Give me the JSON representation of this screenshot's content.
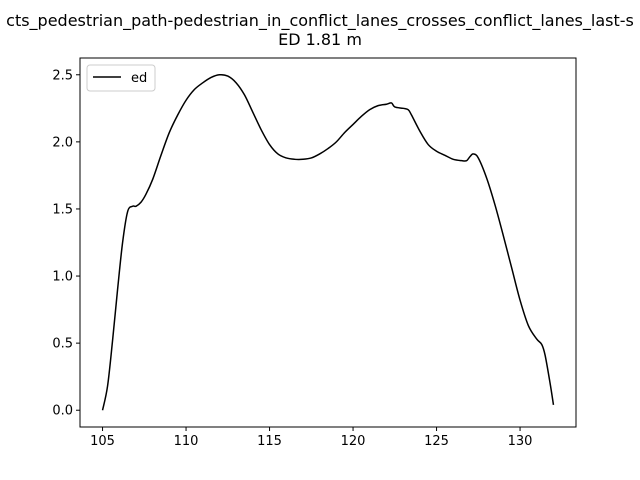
{
  "chart_data": {
    "type": "line",
    "title_line1": "cts_pedestrian_path-pedestrian_in_conflict_lanes_crosses_conflict_lanes_last-s",
    "title_line2": "ED 1.81 m",
    "xlabel": "",
    "ylabel": "",
    "xlim": [
      103.65,
      133.35
    ],
    "ylim": [
      -0.125,
      2.625
    ],
    "x_ticks": [
      105,
      110,
      115,
      120,
      125,
      130
    ],
    "x_tick_labels": [
      "105",
      "110",
      "115",
      "120",
      "125",
      "130"
    ],
    "y_ticks": [
      0.0,
      0.5,
      1.0,
      1.5,
      2.0,
      2.5
    ],
    "y_tick_labels": [
      "0.0",
      "0.5",
      "1.0",
      "1.5",
      "2.0",
      "2.5"
    ],
    "grid": false,
    "legend_position": "upper-left",
    "series": [
      {
        "name": "ed",
        "color": "#000000",
        "x": [
          105.0,
          105.3,
          105.6,
          105.9,
          106.2,
          106.5,
          106.8,
          107.0,
          107.3,
          107.6,
          108.0,
          108.5,
          109.0,
          109.5,
          110.0,
          110.5,
          111.0,
          111.5,
          112.0,
          112.5,
          113.0,
          113.5,
          114.0,
          114.5,
          115.0,
          115.5,
          116.0,
          116.5,
          117.0,
          117.5,
          118.0,
          118.5,
          119.0,
          119.5,
          120.0,
          120.5,
          121.0,
          121.5,
          122.0,
          122.3,
          122.5,
          123.0,
          123.3,
          123.5,
          124.0,
          124.5,
          125.0,
          125.5,
          126.0,
          126.5,
          126.8,
          127.0,
          127.2,
          127.5,
          128.0,
          128.5,
          129.0,
          129.5,
          130.0,
          130.5,
          131.0,
          131.3,
          131.5,
          131.8,
          132.0
        ],
        "y": [
          0.0,
          0.18,
          0.52,
          0.9,
          1.25,
          1.48,
          1.52,
          1.52,
          1.55,
          1.61,
          1.72,
          1.9,
          2.07,
          2.2,
          2.31,
          2.39,
          2.44,
          2.48,
          2.5,
          2.49,
          2.44,
          2.35,
          2.22,
          2.09,
          1.98,
          1.91,
          1.88,
          1.87,
          1.87,
          1.88,
          1.91,
          1.95,
          2.0,
          2.07,
          2.13,
          2.19,
          2.24,
          2.27,
          2.28,
          2.29,
          2.26,
          2.25,
          2.24,
          2.2,
          2.08,
          1.98,
          1.93,
          1.9,
          1.87,
          1.86,
          1.86,
          1.89,
          1.91,
          1.88,
          1.73,
          1.53,
          1.3,
          1.06,
          0.82,
          0.63,
          0.53,
          0.49,
          0.41,
          0.2,
          0.04
        ]
      }
    ]
  }
}
